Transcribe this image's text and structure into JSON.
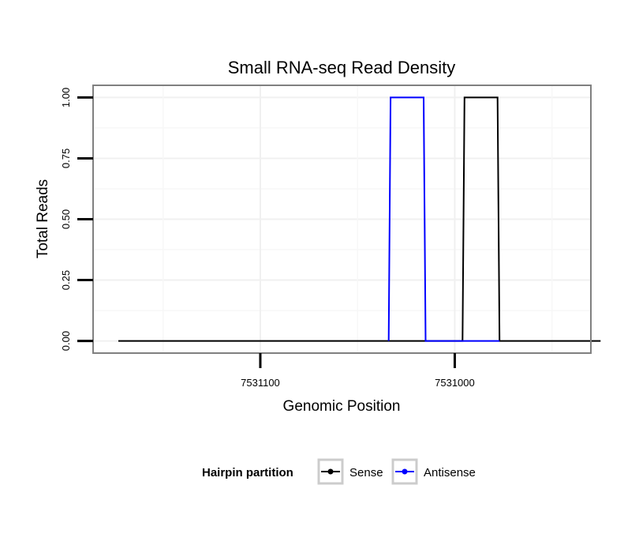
{
  "chart_data": {
    "type": "line",
    "title": "Small RNA-seq Read Density",
    "xlabel": "Genomic Position",
    "ylabel": "Total Reads",
    "x_reversed": true,
    "xlim": [
      7531186,
      7530930
    ],
    "ylim": [
      -0.05,
      1.05
    ],
    "x_ticks": [
      {
        "value": 7531100,
        "label": "7531100"
      },
      {
        "value": 7531000,
        "label": "7531000"
      }
    ],
    "y_ticks": [
      {
        "value": 0.0,
        "label": "0.00"
      },
      {
        "value": 0.25,
        "label": "0.25"
      },
      {
        "value": 0.5,
        "label": "0.50"
      },
      {
        "value": 0.75,
        "label": "0.75"
      },
      {
        "value": 1.0,
        "label": "1.00"
      }
    ],
    "grid": true,
    "legend": {
      "title": "Hairpin partition",
      "position": "bottom",
      "entries": [
        {
          "label": "Sense",
          "color": "#000000"
        },
        {
          "label": "Antisense",
          "color": "#0000ff"
        }
      ]
    },
    "series": [
      {
        "name": "Sense",
        "color": "#000000",
        "x": [
          7531173,
          7530996,
          7530995,
          7530978,
          7530977,
          7530925
        ],
        "y": [
          0,
          0,
          1,
          1,
          0,
          0
        ]
      },
      {
        "name": "Antisense",
        "color": "#0000ff",
        "x": [
          7531034,
          7531033,
          7531016,
          7531015,
          7530996,
          7530995,
          7530978,
          7530977
        ],
        "y": [
          0,
          1,
          1,
          0,
          0,
          0,
          0,
          0
        ]
      }
    ]
  }
}
